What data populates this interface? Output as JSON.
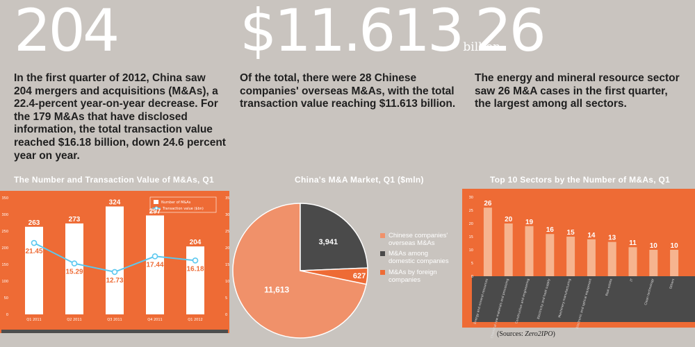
{
  "stats": [
    {
      "number": "204",
      "unit": "",
      "text": "In the first quarter of 2012, China saw 204 mergers and acquisitions (M&As), a 22.4-percent year-on-year decrease. For the 179 M&As that have disclosed information, the total transaction value reached $16.18 billion, down 24.6 percent year on year."
    },
    {
      "number": "$11.613",
      "unit": "billion",
      "text": "Of the total, there were 28 Chinese companies' overseas M&As, with the total transaction value reaching $11.613 billion."
    },
    {
      "number": "26",
      "unit": "",
      "text": "The energy and mineral resource sector saw 26 M&A cases in the first quarter, the largest among all sectors."
    }
  ],
  "source": {
    "prefix": "(Sources: ",
    "name": "Zero2IPO",
    "suffix": ")"
  },
  "colors": {
    "orange": "#ee6b35",
    "dark": "#4a4a4a",
    "light_orange": "#f0916a",
    "bar_light": "#f6b48f",
    "line": "#5bc8ef",
    "frame": "#4d4d4d"
  },
  "chart_data": [
    {
      "type": "bar",
      "title": "The Number and Transaction Value of M&As, Q1",
      "categories": [
        "Q1 2011",
        "Q2 2011",
        "Q3 2011",
        "Q4 2011",
        "Q1 2012"
      ],
      "series": [
        {
          "name": "Number of M&As",
          "type": "bar",
          "values": [
            263,
            273,
            324,
            297,
            204
          ]
        },
        {
          "name": "Transaction value ($bn)",
          "type": "line",
          "values": [
            21.45,
            15.29,
            12.73,
            17.44,
            16.18
          ]
        }
      ],
      "ylim": [
        0,
        350
      ],
      "yticks": [
        "0",
        "50",
        "100",
        "150",
        "200",
        "250",
        "300",
        "350"
      ],
      "y2lim": [
        0,
        35
      ],
      "y2ticks": [
        "0",
        "5",
        "10",
        "15",
        "20",
        "25",
        "30",
        "35"
      ],
      "legend": "top-right",
      "grid": false
    },
    {
      "type": "pie",
      "title": "China's M&A Market, Q1 ($mln)",
      "labels": [
        "Chinese companies' overseas M&As",
        "M&As among domestic companies",
        "M&As by foreign companies"
      ],
      "values": [
        11613,
        3941,
        627
      ],
      "value_labels": [
        "11,613",
        "3,941",
        "627"
      ],
      "legend": "right"
    },
    {
      "type": "bar",
      "title": "Top 10 Sectors by the Number of M&As, Q1",
      "categories": [
        "Energy and mineral resources",
        "Chemical raw materials and processing",
        "Construction and engineering",
        "Electricity and heat supply",
        "Machinery manufacturing",
        "Electronic and optical equipment",
        "Real estate",
        "IT",
        "Clean technology",
        "Others"
      ],
      "values": [
        26,
        20,
        19,
        16,
        15,
        14,
        13,
        11,
        10,
        10
      ],
      "ylim": [
        0,
        30
      ],
      "yticks": [
        "0",
        "5",
        "10",
        "15",
        "20",
        "25",
        "30"
      ],
      "grid": false
    }
  ]
}
